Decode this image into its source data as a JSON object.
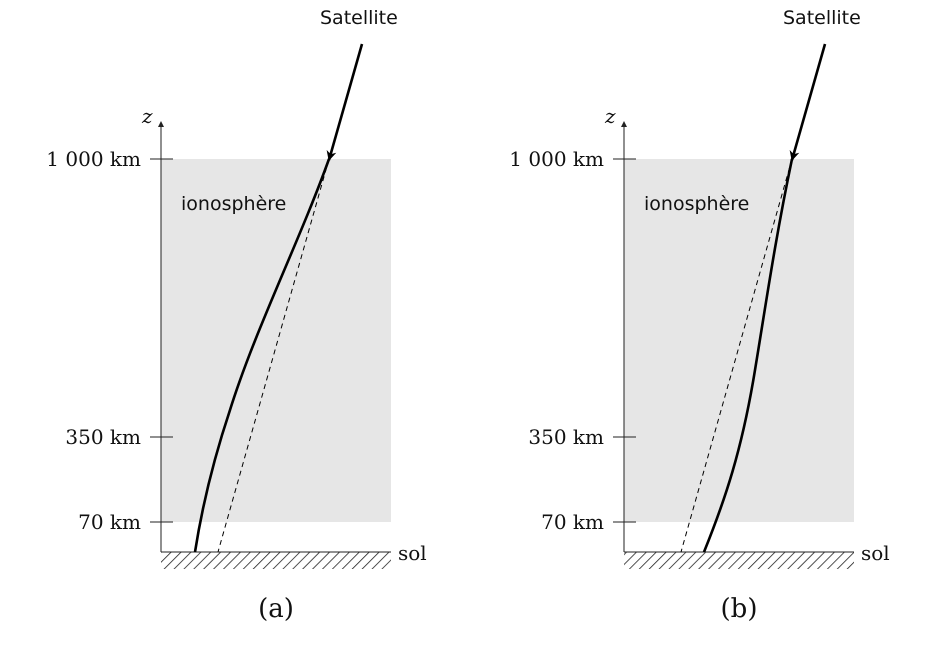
{
  "panels": [
    {
      "id": "a",
      "caption": "(a)",
      "axis_label": "z",
      "ticks": [
        "1 000 km",
        "350 km",
        "70 km"
      ],
      "region_label": "ionosphère",
      "source_label": "Satellite",
      "ground_label": "sol",
      "path_bend": "away"
    },
    {
      "id": "b",
      "caption": "(b)",
      "axis_label": "z",
      "ticks": [
        "1 000 km",
        "350 km",
        "70 km"
      ],
      "region_label": "ionosphère",
      "source_label": "Satellite",
      "ground_label": "sol",
      "path_bend": "toward"
    }
  ],
  "colors": {
    "ionosphere_fill": "#e6e6e6",
    "ray": "#000000",
    "axis": "#222222"
  }
}
